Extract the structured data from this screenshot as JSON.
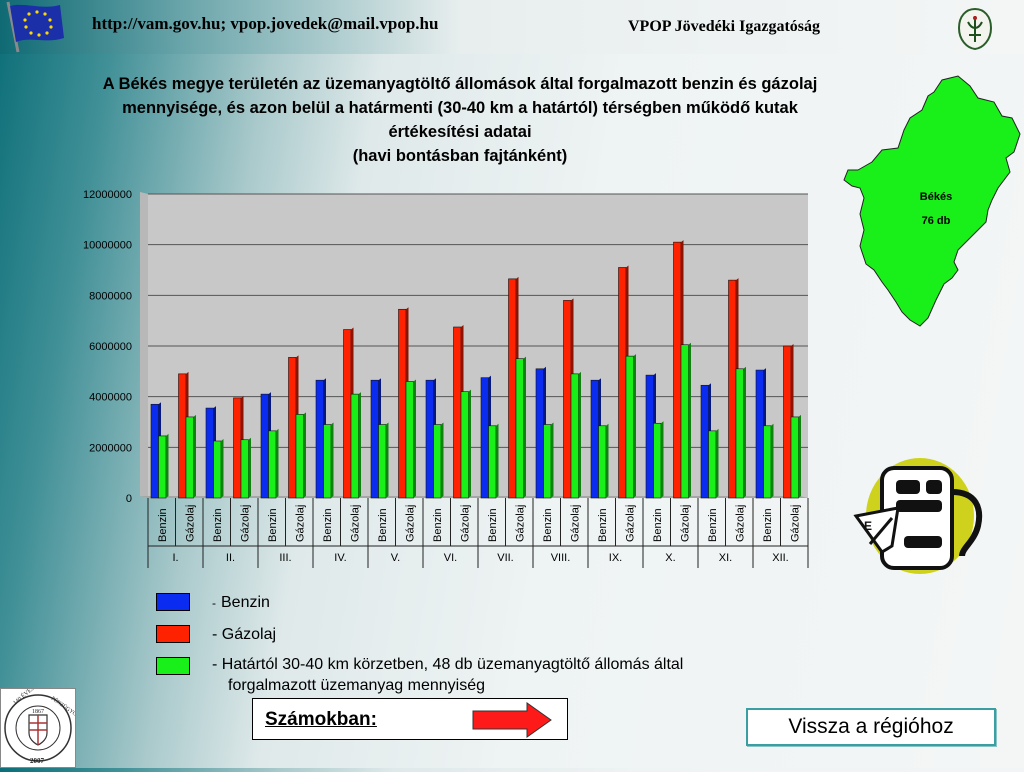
{
  "header": {
    "url": "http://vam.gov.hu; vpop.jovedek@mail.vpop.hu",
    "org": "VPOP Jövedéki Igazgatóság"
  },
  "title": {
    "line1": "A Békés megye területén az üzemanyagtöltő állomások által forgalmazott benzin és gázolaj",
    "line2": "mennyisége, és azon belül a határmenti (30-40 km a határtól) térségben működő kutak",
    "line3": "értékesítési adatai",
    "line4": "(havi bontásban fajtánként)"
  },
  "map": {
    "county": "Békés",
    "count": "76 db",
    "color": "#19f019"
  },
  "colors": {
    "benzin": "#0a2cf0",
    "gazolaj": "#ff2200",
    "border_zone": "#19f019"
  },
  "legend": {
    "benzin": "Benzin",
    "gazolaj": "Gázolaj",
    "border_zone_line1": "- Határtól 30-40 km körzetben, 48 db üzemanyagtöltő állomás által",
    "border_zone_line2": "forgalmazott üzemanyag mennyiség"
  },
  "nav": {
    "numbers_label": "Számokban:",
    "back_label": "Vissza a régióhoz"
  },
  "logo": {
    "text": "140 ÉVES A VÁM- ÉS PÉNZÜGYŐRSÉG 1867 2007"
  },
  "chart_data": {
    "type": "bar",
    "months": [
      "I.",
      "II.",
      "III.",
      "IV.",
      "V.",
      "VI.",
      "VII.",
      "VIII.",
      "IX.",
      "X.",
      "XI.",
      "XII."
    ],
    "fuel_labels": [
      "Benzin",
      "Gázolaj"
    ],
    "series": [
      {
        "name": "Benzin",
        "values": [
          3700000,
          3550000,
          4100000,
          4650000,
          4650000,
          4650000,
          4750000,
          5100000,
          4650000,
          4850000,
          4450000,
          5050000
        ]
      },
      {
        "name": "Gázolaj",
        "values": [
          4900000,
          3950000,
          5550000,
          6650000,
          7450000,
          6750000,
          8650000,
          7800000,
          9100000,
          10100000,
          8600000,
          6000000
        ]
      },
      {
        "name": "Határtól 30-40 km körzetben, 48 db üzemanyagtöltő állomás által forgalmazott üzemanyag mennyiség",
        "benzin": [
          2450000,
          2250000,
          2650000,
          2900000,
          2900000,
          2900000,
          2850000,
          2900000,
          2850000,
          2950000,
          2650000,
          2850000
        ],
        "gazolaj": [
          3200000,
          2300000,
          3300000,
          4100000,
          4600000,
          4200000,
          5500000,
          4900000,
          5600000,
          6050000,
          5100000,
          3200000
        ]
      }
    ],
    "y_ticks": [
      "0",
      "2000000",
      "4000000",
      "6000000",
      "8000000",
      "10000000",
      "12000000"
    ],
    "ylim": [
      0,
      12000000
    ],
    "grid": true,
    "legend": "bottom"
  }
}
